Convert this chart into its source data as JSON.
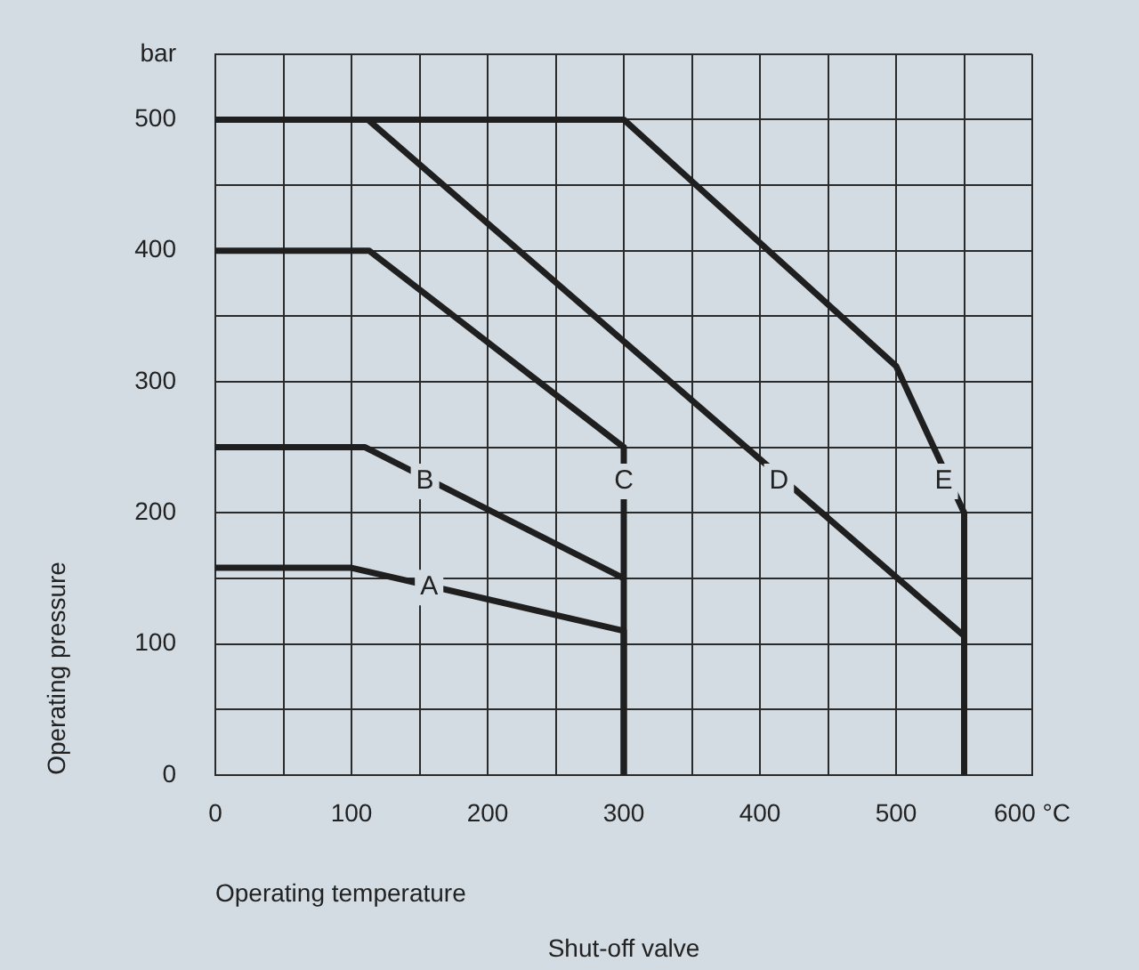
{
  "chart_data": {
    "type": "line",
    "xlabel": "Operating temperature",
    "ylabel": "Operating pressure",
    "xlim": [
      0,
      600
    ],
    "ylim": [
      0,
      550
    ],
    "xticks": [
      0,
      {
        "value": 50,
        "label": null
      },
      100,
      {
        "value": 150,
        "label": null
      },
      200,
      {
        "value": 250,
        "label": null
      },
      300,
      {
        "value": 350,
        "label": null
      },
      400,
      {
        "value": 450,
        "label": null
      },
      500,
      {
        "value": 550,
        "label": null
      },
      {
        "value": 600,
        "label": "600 °C"
      }
    ],
    "yticks": [
      0,
      {
        "value": 50,
        "label": null
      },
      100,
      {
        "value": 150,
        "label": null
      },
      200,
      {
        "value": 250,
        "label": null
      },
      300,
      {
        "value": 350,
        "label": null
      },
      400,
      {
        "value": 450,
        "label": null
      },
      500,
      {
        "value": 550,
        "label": "bar"
      }
    ],
    "grid": true,
    "marker": "none",
    "line_style": "solid",
    "series": [
      {
        "color": "#1f1f1f",
        "x": [
          0,
          100,
          300,
          300
        ],
        "values": [
          158,
          158,
          110,
          0
        ]
      },
      {
        "color": "#1f1f1f",
        "x": [
          0,
          110,
          300
        ],
        "values": [
          250,
          250,
          150
        ]
      },
      {
        "color": "#1f1f1f",
        "x": [
          0,
          113,
          300,
          300
        ],
        "values": [
          400,
          400,
          250,
          0
        ]
      },
      {
        "color": "#1f1f1f",
        "x": [
          0,
          112,
          550
        ],
        "values": [
          500,
          500,
          106
        ]
      },
      {
        "color": "#1f1f1f",
        "x": [
          0,
          300,
          500,
          550,
          550
        ],
        "values": [
          500,
          500,
          312,
          200,
          0
        ]
      }
    ],
    "annotations": [
      {
        "text": "A",
        "x": 157,
        "y": 143
      },
      {
        "text": "B",
        "x": 154,
        "y": 224
      },
      {
        "text": "C",
        "x": 300,
        "y": 224
      },
      {
        "text": "D",
        "x": 414,
        "y": 224
      },
      {
        "text": "E",
        "x": 535,
        "y": 224
      },
      "Shut-off valve"
    ]
  }
}
